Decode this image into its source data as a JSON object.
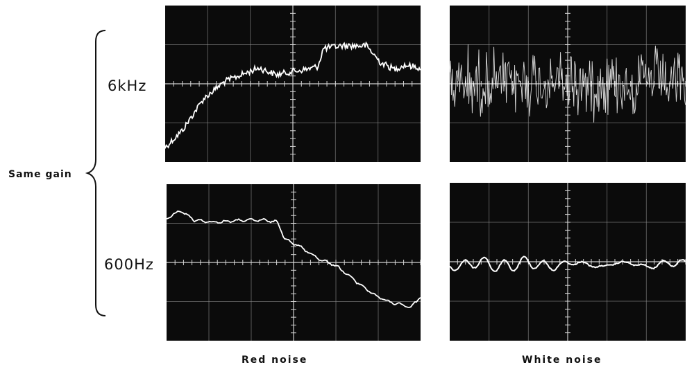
{
  "labels": {
    "gain": "Same gain",
    "row_top": "6kHz",
    "row_bottom": "600Hz",
    "col_left": "Red noise",
    "col_right": "White noise"
  },
  "panels": [
    {
      "id": "red-6khz",
      "signal": "red noise",
      "frequency": "6kHz"
    },
    {
      "id": "white-6khz",
      "signal": "white noise",
      "frequency": "6kHz"
    },
    {
      "id": "red-600hz",
      "signal": "red noise",
      "frequency": "600Hz"
    },
    {
      "id": "white-600hz",
      "signal": "white noise",
      "frequency": "600Hz"
    }
  ],
  "colors": {
    "screen": "#0b0b0b",
    "grid": "#9a9a9a",
    "trace": "#ffffff",
    "text": "#111111"
  }
}
